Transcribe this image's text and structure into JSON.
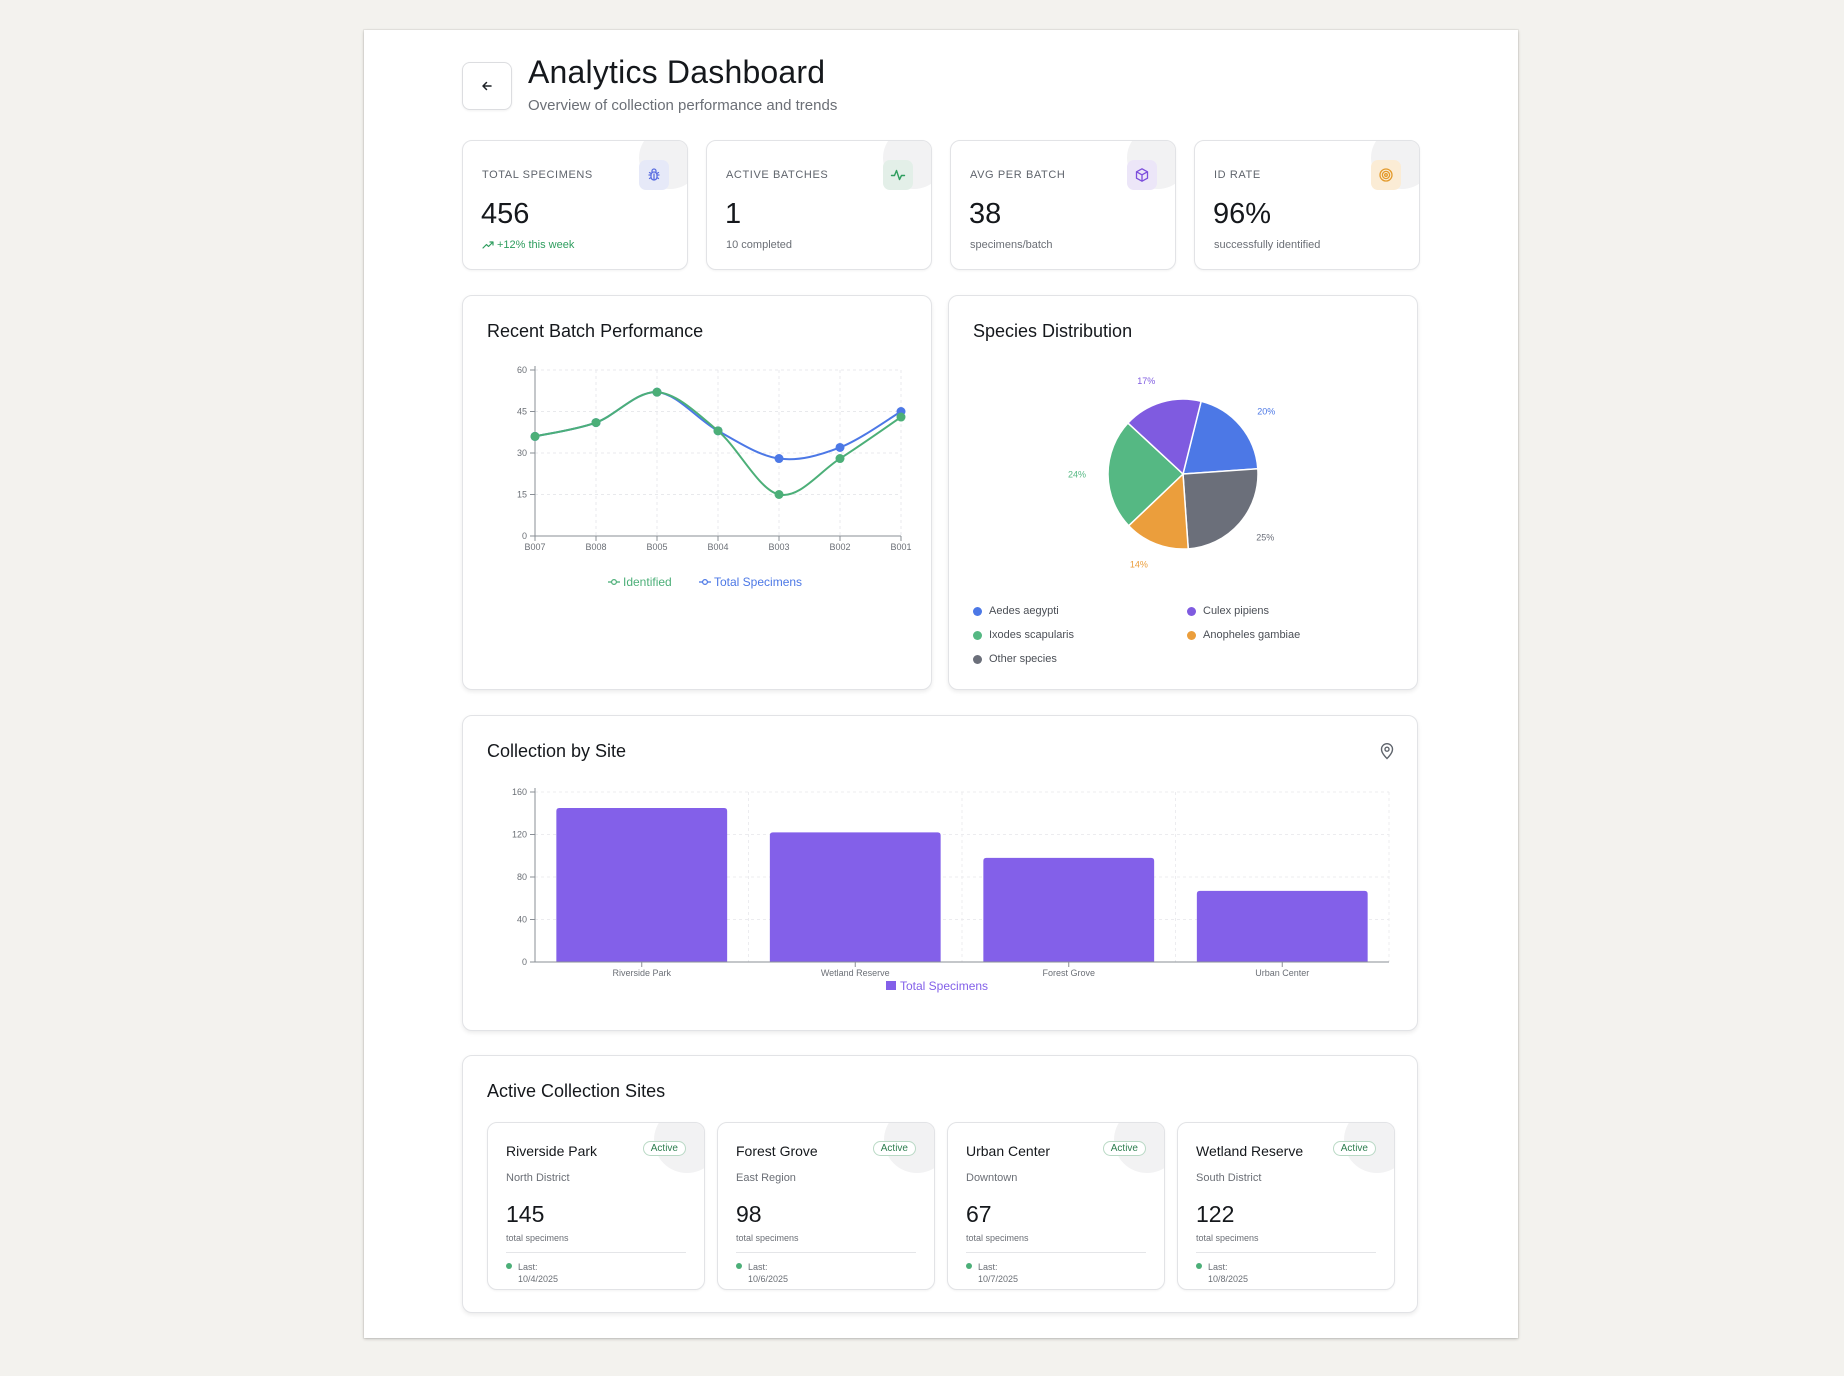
{
  "header": {
    "title": "Analytics Dashboard",
    "subtitle": "Overview of collection performance and trends"
  },
  "stats": [
    {
      "label": "Total Specimens",
      "value": "456",
      "sub": "+12% this week",
      "icon": "bug-icon",
      "color": "#5b6ee1"
    },
    {
      "label": "Active Batches",
      "value": "1",
      "sub": "10 completed",
      "icon": "activity-icon",
      "color": "#2e9d5e"
    },
    {
      "label": "Avg Per Batch",
      "value": "38",
      "sub": "specimens/batch",
      "icon": "box-icon",
      "color": "#7c4ddc"
    },
    {
      "label": "ID Rate",
      "value": "96%",
      "sub": "successfully identified",
      "icon": "target-icon",
      "color": "#e39a2b"
    }
  ],
  "batch_panel": {
    "title": "Recent Batch Performance"
  },
  "species_panel": {
    "title": "Species Distribution"
  },
  "site_panel": {
    "title": "Collection by Site"
  },
  "active_sites_panel": {
    "title": "Active Collection Sites"
  },
  "colors": {
    "identified": "#4caf78",
    "total": "#4c78e6",
    "bar": "#8360e9"
  },
  "chart_data": [
    {
      "type": "line",
      "x": [
        "B007",
        "B008",
        "B005",
        "B004",
        "B003",
        "B002",
        "B001"
      ],
      "series": [
        {
          "name": "Identified",
          "values": [
            36,
            41,
            52,
            38,
            15,
            28,
            43
          ],
          "color": "#4caf78"
        },
        {
          "name": "Total Specimens",
          "values": [
            36,
            41,
            52,
            38,
            28,
            32,
            45
          ],
          "color": "#4c78e6"
        }
      ],
      "yticks": [
        0,
        15,
        30,
        45,
        60
      ],
      "ylim": [
        0,
        60
      ],
      "grid": true,
      "legend": "bottom"
    },
    {
      "type": "pie",
      "slices": [
        {
          "label": "Aedes aegypti",
          "value": 20,
          "text": "20%",
          "color": "#4c78e6"
        },
        {
          "label": "Other species",
          "value": 25,
          "text": "25%",
          "color": "#6b6f7a"
        },
        {
          "label": "Anopheles gambiae",
          "value": 14,
          "text": "14%",
          "color": "#eb9e3c"
        },
        {
          "label": "Ixodes scapularis",
          "value": 24,
          "text": "24%",
          "color": "#55b883"
        },
        {
          "label": "Culex pipiens",
          "value": 17,
          "text": "17%",
          "color": "#7f5be0"
        }
      ],
      "legend_order": [
        "Aedes aegypti",
        "Culex pipiens",
        "Ixodes scapularis",
        "Anopheles gambiae",
        "Other species"
      ],
      "legend": "bottom"
    },
    {
      "type": "bar",
      "categories": [
        "Riverside Park",
        "Wetland Reserve",
        "Forest Grove",
        "Urban Center"
      ],
      "series": [
        {
          "name": "Total Specimens",
          "values": [
            145,
            122,
            98,
            67
          ],
          "color": "#8360e9"
        }
      ],
      "yticks": [
        0,
        40,
        80,
        120,
        160
      ],
      "ylim": [
        0,
        160
      ],
      "grid": true,
      "legend": "bottom"
    }
  ],
  "sites": [
    {
      "name": "Riverside Park",
      "badge": "Active",
      "region": "North District",
      "count": "145",
      "count_label": "total specimens",
      "last_label": "Last:",
      "last_date": "10/4/2025"
    },
    {
      "name": "Forest Grove",
      "badge": "Active",
      "region": "East Region",
      "count": "98",
      "count_label": "total specimens",
      "last_label": "Last:",
      "last_date": "10/6/2025"
    },
    {
      "name": "Urban Center",
      "badge": "Active",
      "region": "Downtown",
      "count": "67",
      "count_label": "total specimens",
      "last_label": "Last:",
      "last_date": "10/7/2025"
    },
    {
      "name": "Wetland Reserve",
      "badge": "Active",
      "region": "South District",
      "count": "122",
      "count_label": "total specimens",
      "last_label": "Last:",
      "last_date": "10/8/2025"
    }
  ]
}
